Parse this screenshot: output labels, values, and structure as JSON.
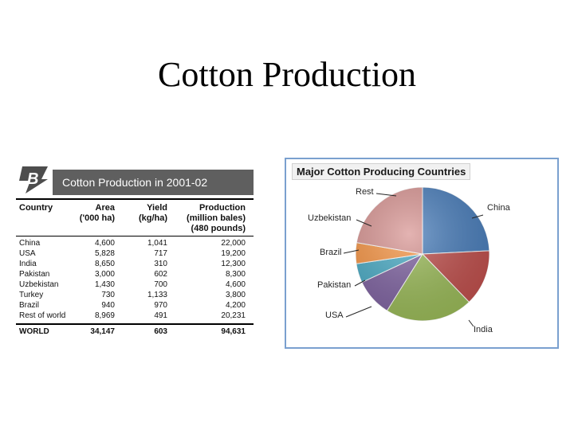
{
  "slide": {
    "title": "Cotton Production"
  },
  "table": {
    "title": "Cotton Production in 2001-02",
    "logo_text": "B",
    "headers": {
      "country": "Country",
      "area": [
        "Area",
        "('000 ha)"
      ],
      "yield": [
        "Yield",
        "(kg/ha)"
      ],
      "production": [
        "Production",
        "(million bales)",
        "(480 pounds)"
      ]
    },
    "rows": [
      [
        "China",
        "4,600",
        "1,041",
        "22,000"
      ],
      [
        "USA",
        "5,828",
        "717",
        "19,200"
      ],
      [
        "India",
        "8,650",
        "310",
        "12,300"
      ],
      [
        "Pakistan",
        "3,000",
        "602",
        "8,300"
      ],
      [
        "Uzbekistan",
        "1,430",
        "700",
        "4,600"
      ],
      [
        "Turkey",
        "730",
        "1,133",
        "3,800"
      ],
      [
        "Brazil",
        "940",
        "970",
        "4,200"
      ],
      [
        "Rest of world",
        "8,969",
        "491",
        "20,231"
      ]
    ],
    "total": [
      "WORLD",
      "34,147",
      "603",
      "94,631"
    ]
  },
  "chart_data": {
    "type": "pie",
    "title": "Major Cotton Producing Countries",
    "categories": [
      "China",
      "India",
      "USA",
      "Pakistan",
      "Brazil",
      "Uzbekistan",
      "Rest"
    ],
    "values": [
      22000,
      12300,
      19200,
      8300,
      4200,
      4600,
      20231
    ],
    "colors": [
      "#4a7ebb",
      "#c0504d",
      "#9bbb59",
      "#8064a2",
      "#4bacc6",
      "#f79646",
      "#d99694"
    ]
  }
}
